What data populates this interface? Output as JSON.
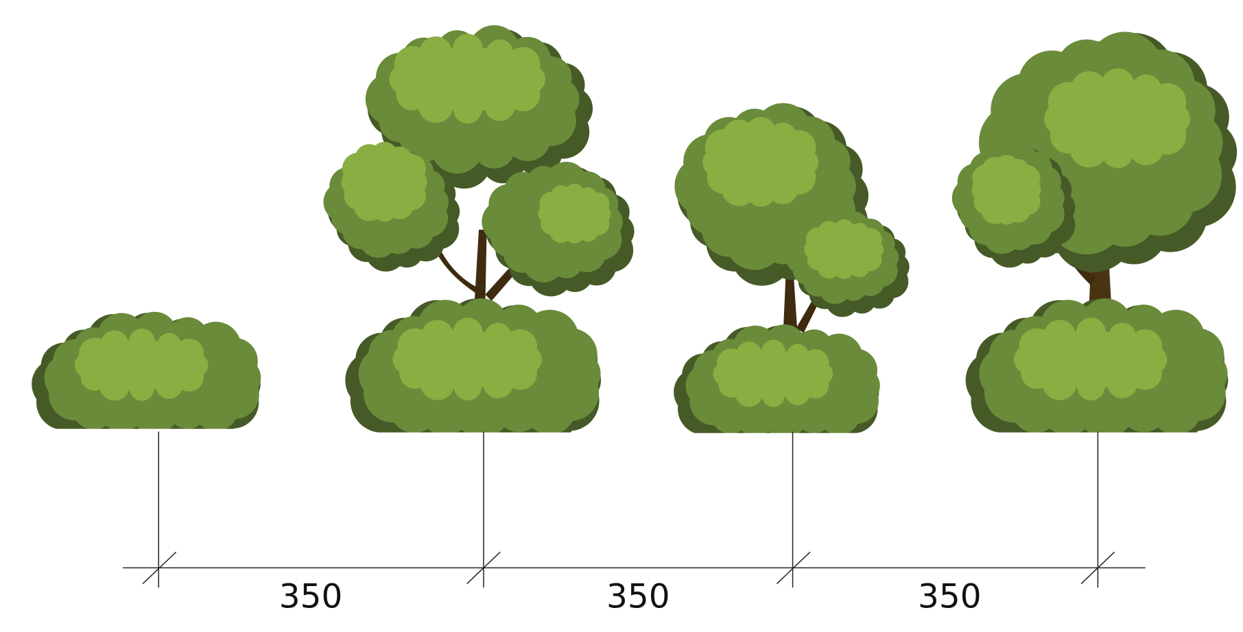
{
  "dimensions": [
    "350",
    "350",
    "350"
  ]
}
